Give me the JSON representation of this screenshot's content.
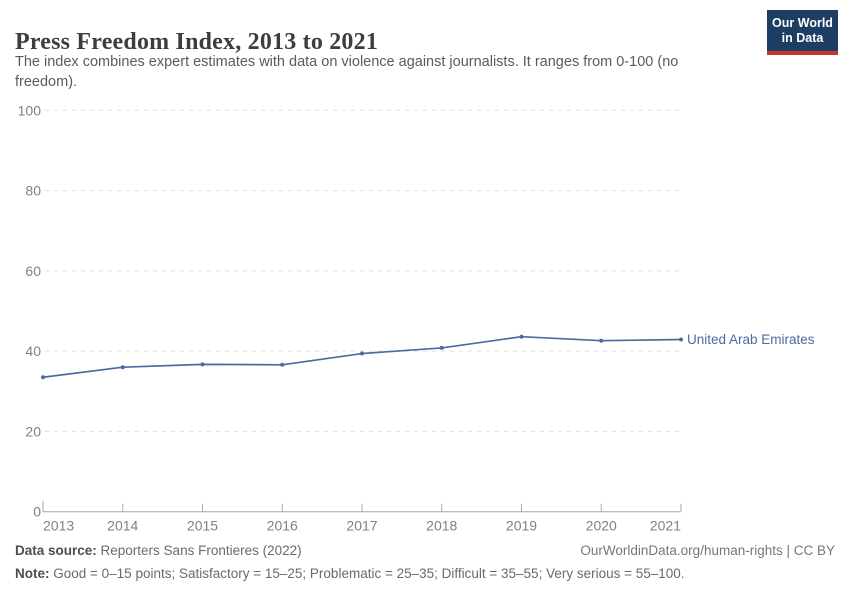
{
  "header": {
    "title": "Press Freedom Index, 2013 to 2021",
    "subtitle": "The index combines expert estimates with data on violence against journalists. It ranges from 0-100 (no freedom).",
    "logo": {
      "line1": "Our World",
      "line2": "in Data",
      "bg_color": "#1d3d63",
      "accent_color": "#c8342c"
    }
  },
  "chart_data": {
    "type": "line",
    "title": "Press Freedom Index, 2013 to 2021",
    "x": [
      2013,
      2014,
      2015,
      2016,
      2017,
      2018,
      2019,
      2020,
      2021
    ],
    "series": [
      {
        "name": "United Arab Emirates",
        "values": [
          33.5,
          36.0,
          36.7,
          36.6,
          39.4,
          40.8,
          43.6,
          42.6,
          42.9
        ],
        "color": "#4c6aa0"
      }
    ],
    "xlabel": "",
    "ylabel": "",
    "ylim": [
      0,
      100
    ],
    "yticks": [
      0,
      20,
      40,
      60,
      80,
      100
    ],
    "grid": "horizontal-dashed",
    "legend": "line-end-label",
    "colors": {
      "grid": "#dddddd",
      "axis": "#a8a8a8",
      "tick_label": "#818181"
    }
  },
  "footer": {
    "datasource_label": "Data source:",
    "datasource_value": " Reporters Sans Frontieres (2022)",
    "note_label": "Note:",
    "note_value": " Good = 0–15 points; Satisfactory = 15–25; Problematic = 25–35; Difficult = 35–55; Very serious = 55–100.",
    "citation_link": "OurWorldinData.org/human-rights | CC BY"
  }
}
